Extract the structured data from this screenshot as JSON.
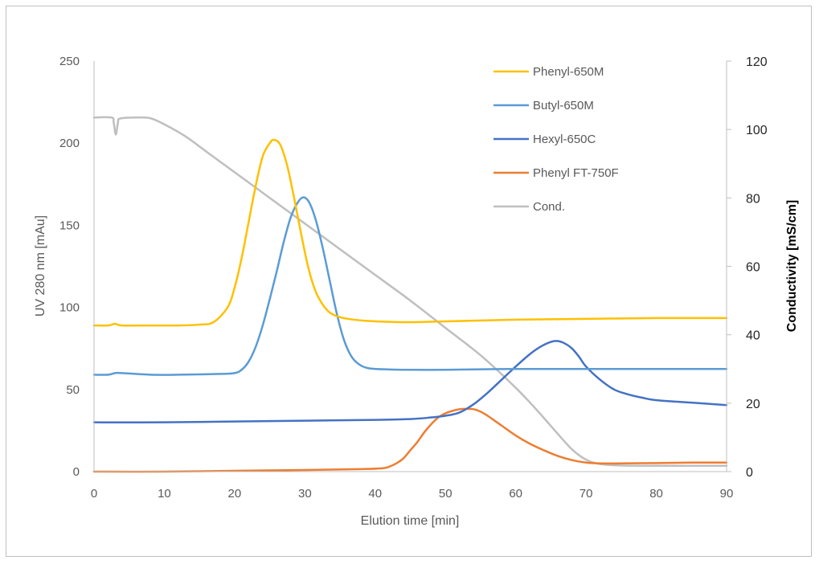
{
  "chart_data": {
    "type": "line",
    "xlabel": "Elution time [min]",
    "ylabel": "UV 280 nm [mAu]",
    "y2label": "Conductivity [mS/cm]",
    "xlim": [
      0,
      90
    ],
    "ylim": [
      0,
      250
    ],
    "y2lim": [
      0,
      120
    ],
    "x_ticks": [
      0,
      10,
      20,
      30,
      40,
      50,
      60,
      70,
      80,
      90
    ],
    "y_ticks": [
      0,
      50,
      100,
      150,
      200,
      250
    ],
    "y2_ticks": [
      0,
      20,
      40,
      60,
      80,
      100,
      120
    ],
    "grid": false,
    "legend_position": "top-right",
    "series": [
      {
        "name": "Phenyl-650M",
        "axis": "left",
        "color": "#ffc000",
        "points": [
          [
            0,
            89
          ],
          [
            2,
            89
          ],
          [
            3,
            90
          ],
          [
            4,
            89
          ],
          [
            8,
            89
          ],
          [
            12,
            89
          ],
          [
            15,
            89.5
          ],
          [
            17,
            91
          ],
          [
            19,
            100
          ],
          [
            20,
            112
          ],
          [
            21,
            130
          ],
          [
            22,
            152
          ],
          [
            23,
            174
          ],
          [
            24,
            192
          ],
          [
            25,
            200
          ],
          [
            25.6,
            202
          ],
          [
            26.5,
            199
          ],
          [
            27.5,
            186
          ],
          [
            28.5,
            166
          ],
          [
            29.5,
            144
          ],
          [
            30.5,
            124
          ],
          [
            31.5,
            110
          ],
          [
            32.5,
            102
          ],
          [
            33.5,
            97
          ],
          [
            35,
            94
          ],
          [
            37,
            92.5
          ],
          [
            40,
            91.5
          ],
          [
            45,
            91
          ],
          [
            50,
            91.5
          ],
          [
            60,
            92.5
          ],
          [
            70,
            93
          ],
          [
            80,
            93.5
          ],
          [
            90,
            93.5
          ]
        ]
      },
      {
        "name": "Butyl-650M",
        "axis": "left",
        "color": "#5b9bd5",
        "points": [
          [
            0,
            59
          ],
          [
            2,
            59
          ],
          [
            3,
            60
          ],
          [
            4,
            60
          ],
          [
            8,
            59
          ],
          [
            12,
            59
          ],
          [
            18,
            59.5
          ],
          [
            20,
            60
          ],
          [
            21,
            62
          ],
          [
            22,
            67
          ],
          [
            23,
            76
          ],
          [
            24,
            89
          ],
          [
            25,
            105
          ],
          [
            26,
            122
          ],
          [
            27,
            140
          ],
          [
            28,
            155
          ],
          [
            29,
            164
          ],
          [
            29.8,
            167
          ],
          [
            30.6,
            164
          ],
          [
            31.5,
            154
          ],
          [
            32.5,
            137
          ],
          [
            33.5,
            117
          ],
          [
            34.5,
            97
          ],
          [
            35.5,
            81
          ],
          [
            36.5,
            71
          ],
          [
            37.5,
            66
          ],
          [
            39,
            63
          ],
          [
            42,
            62.2
          ],
          [
            45,
            62
          ],
          [
            50,
            62
          ],
          [
            60,
            62.5
          ],
          [
            70,
            62.5
          ],
          [
            80,
            62.5
          ],
          [
            90,
            62.5
          ]
        ]
      },
      {
        "name": "Hexyl-650C",
        "axis": "left",
        "color": "#4472c4",
        "points": [
          [
            0,
            30
          ],
          [
            10,
            30
          ],
          [
            20,
            30.5
          ],
          [
            30,
            31
          ],
          [
            40,
            31.5
          ],
          [
            45,
            32
          ],
          [
            48,
            33
          ],
          [
            50,
            34
          ],
          [
            52,
            36
          ],
          [
            54,
            41
          ],
          [
            56,
            48
          ],
          [
            58,
            56
          ],
          [
            60,
            64
          ],
          [
            62,
            71.5
          ],
          [
            63.5,
            76
          ],
          [
            65,
            79
          ],
          [
            66,
            79.5
          ],
          [
            67,
            78
          ],
          [
            68,
            75
          ],
          [
            69,
            70
          ],
          [
            70,
            64
          ],
          [
            72,
            56
          ],
          [
            74,
            50
          ],
          [
            76,
            47
          ],
          [
            78,
            45
          ],
          [
            80,
            43.5
          ],
          [
            85,
            42
          ],
          [
            90,
            40.5
          ]
        ]
      },
      {
        "name": "Phenyl FT-750F",
        "axis": "left",
        "color": "#ed7d31",
        "points": [
          [
            0,
            0
          ],
          [
            10,
            0
          ],
          [
            20,
            0.5
          ],
          [
            30,
            1
          ],
          [
            38,
            1.5
          ],
          [
            41,
            2
          ],
          [
            42,
            3
          ],
          [
            43,
            5
          ],
          [
            44,
            8
          ],
          [
            45,
            13
          ],
          [
            46,
            18
          ],
          [
            47,
            24
          ],
          [
            48,
            29
          ],
          [
            49,
            33
          ],
          [
            50,
            35.5
          ],
          [
            51,
            37
          ],
          [
            52,
            38
          ],
          [
            53,
            38.2
          ],
          [
            54,
            38
          ],
          [
            55,
            36.5
          ],
          [
            56,
            34
          ],
          [
            57,
            31
          ],
          [
            58,
            28
          ],
          [
            60,
            22
          ],
          [
            62,
            17
          ],
          [
            64,
            13
          ],
          [
            66,
            9.5
          ],
          [
            68,
            7
          ],
          [
            70,
            5.5
          ],
          [
            72,
            5
          ],
          [
            75,
            5
          ],
          [
            80,
            5.2
          ],
          [
            85,
            5.5
          ],
          [
            90,
            5.5
          ]
        ]
      },
      {
        "name": "Cond.",
        "axis": "right",
        "color": "#bfbfbf",
        "points": [
          [
            0,
            103.5
          ],
          [
            2.5,
            103.5
          ],
          [
            2.8,
            102
          ],
          [
            3.1,
            98.5
          ],
          [
            3.4,
            102
          ],
          [
            3.7,
            103.2
          ],
          [
            6,
            103.5
          ],
          [
            8,
            103.3
          ],
          [
            10,
            101.5
          ],
          [
            13,
            98
          ],
          [
            16,
            93.5
          ],
          [
            20,
            87.5
          ],
          [
            25,
            80
          ],
          [
            30,
            72.5
          ],
          [
            35,
            65
          ],
          [
            40,
            57.5
          ],
          [
            45,
            50
          ],
          [
            50,
            42
          ],
          [
            55,
            34
          ],
          [
            60,
            24.5
          ],
          [
            63,
            18
          ],
          [
            66,
            11
          ],
          [
            68,
            6.5
          ],
          [
            70,
            3.5
          ],
          [
            72,
            2.2
          ],
          [
            75,
            1.8
          ],
          [
            80,
            1.7
          ],
          [
            90,
            1.7
          ]
        ]
      }
    ]
  }
}
